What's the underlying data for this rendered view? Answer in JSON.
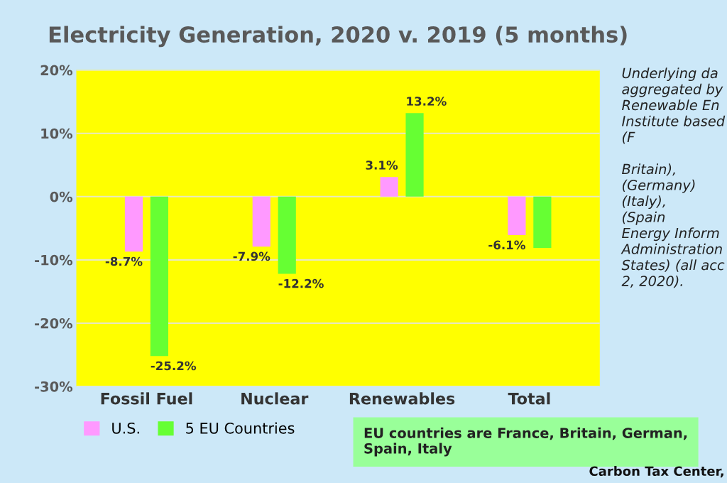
{
  "chart_data": {
    "type": "bar",
    "title": "Electricity Generation, 2020 v. 2019 (5 months)",
    "categories": [
      "Fossil Fuel",
      "Nuclear",
      "Renewables",
      "Total"
    ],
    "series": [
      {
        "name": "U.S.",
        "color": "#ff99ff",
        "values": [
          -8.7,
          -7.9,
          3.1,
          -6.1
        ],
        "value_labels": [
          "-8.7%",
          "-7.9%",
          "3.1%",
          "-6.1%"
        ]
      },
      {
        "name": "5 EU Countries",
        "color": "#66ff33",
        "values": [
          -25.2,
          -12.2,
          13.2,
          -8.1
        ],
        "value_labels": [
          "-25.2%",
          "-12.2%",
          "13.2%",
          null
        ]
      }
    ],
    "ylim": [
      -30,
      20
    ],
    "yticks": [
      {
        "value": -30,
        "label": "-30%"
      },
      {
        "value": -20,
        "label": "-20%"
      },
      {
        "value": -10,
        "label": "-10%"
      },
      {
        "value": 0,
        "label": "0%"
      },
      {
        "value": 10,
        "label": "10%"
      },
      {
        "value": 20,
        "label": "20%"
      }
    ],
    "grid": "y",
    "legend": "bottom left",
    "annotations": [
      "EU countries are France, Britain, German, Spain, Italy",
      "Underlying da\naggregated by\nRenewable En\nInstitute based\n(F\n\nBritain),\n(Germany)\n(Italy),\n(Spain\nEnergy Inform\nAdministration\nStates) (all acc\n2, 2020).",
      "Carbon Tax Center,"
    ]
  }
}
